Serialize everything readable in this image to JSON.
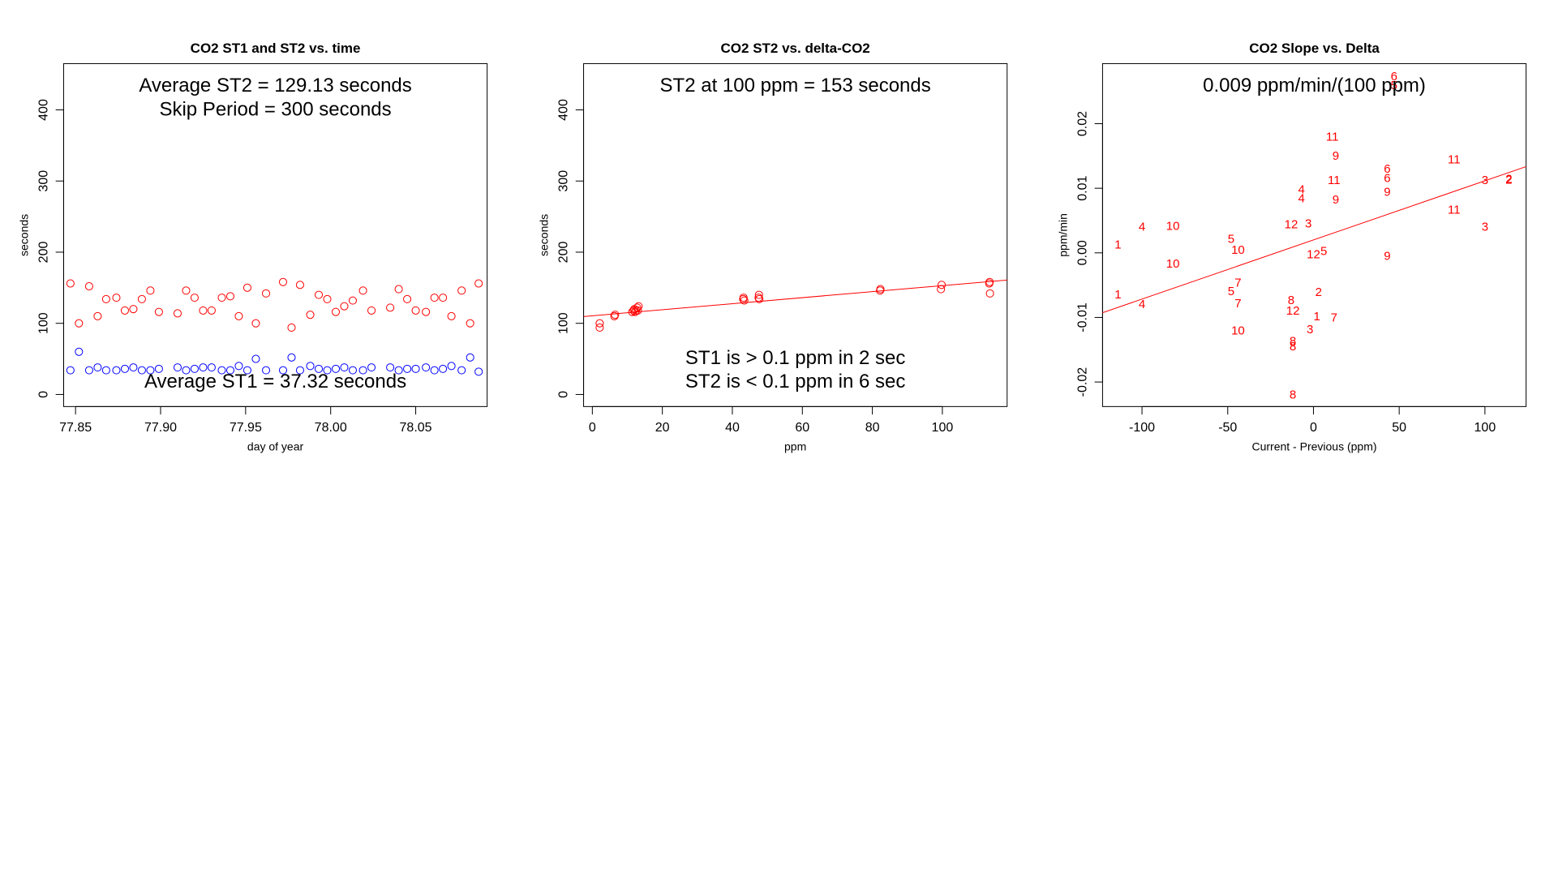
{
  "colors": {
    "st2": "#ff0000",
    "st1": "#0000ff",
    "axis": "#000000",
    "fit": "#ff0000"
  },
  "chart_data": [
    {
      "type": "scatter",
      "title": "CO2 ST1 and ST2 vs. time",
      "xlabel": "day of year",
      "ylabel": "seconds",
      "xlim": [
        77.843,
        78.092
      ],
      "ylim": [
        -17,
        465
      ],
      "xticks": [
        77.85,
        77.9,
        77.95,
        78.0,
        78.05
      ],
      "xtick_labels": [
        "77.85",
        "77.90",
        "77.95",
        "78.00",
        "78.05"
      ],
      "yticks": [
        0,
        100,
        200,
        300,
        400
      ],
      "ytick_labels": [
        "0",
        "100",
        "200",
        "300",
        "400"
      ],
      "annotations": [
        "Average ST2 =  129.13  seconds",
        "Skip Period =  300  seconds",
        "Average ST1 =  37.32  seconds"
      ],
      "series": [
        {
          "name": "ST2",
          "marker": "circle",
          "color": "#ff0000",
          "x": [
            77.847,
            77.852,
            77.858,
            77.863,
            77.868,
            77.874,
            77.879,
            77.884,
            77.889,
            77.894,
            77.899,
            77.91,
            77.915,
            77.92,
            77.925,
            77.93,
            77.936,
            77.941,
            77.946,
            77.951,
            77.956,
            77.962,
            77.972,
            77.977,
            77.982,
            77.988,
            77.993,
            77.998,
            78.003,
            78.008,
            78.013,
            78.019,
            78.024,
            78.035,
            78.04,
            78.045,
            78.05,
            78.056,
            78.061,
            78.066,
            78.071,
            78.077,
            78.082,
            78.087
          ],
          "y": [
            156,
            100,
            152,
            110,
            134,
            136,
            118,
            120,
            134,
            146,
            116,
            114,
            146,
            136,
            118,
            118,
            136,
            138,
            110,
            150,
            100,
            142,
            158,
            94,
            154,
            112,
            140,
            134,
            116,
            124,
            132,
            146,
            118,
            122,
            148,
            134,
            118,
            116,
            136,
            136,
            110,
            146,
            100,
            156
          ]
        },
        {
          "name": "ST1",
          "marker": "circle",
          "color": "#0000ff",
          "x": [
            77.847,
            77.852,
            77.858,
            77.863,
            77.868,
            77.874,
            77.879,
            77.884,
            77.889,
            77.894,
            77.899,
            77.91,
            77.915,
            77.92,
            77.925,
            77.93,
            77.936,
            77.941,
            77.946,
            77.951,
            77.956,
            77.962,
            77.972,
            77.977,
            77.982,
            77.988,
            77.993,
            77.998,
            78.003,
            78.008,
            78.013,
            78.019,
            78.024,
            78.035,
            78.04,
            78.045,
            78.05,
            78.056,
            78.061,
            78.066,
            78.071,
            78.077,
            78.082,
            78.087
          ],
          "y": [
            34,
            60,
            34,
            38,
            34,
            34,
            36,
            38,
            34,
            34,
            36,
            38,
            34,
            36,
            38,
            38,
            34,
            34,
            40,
            34,
            50,
            34,
            34,
            52,
            34,
            40,
            36,
            34,
            36,
            38,
            34,
            34,
            38,
            38,
            34,
            36,
            36,
            38,
            34,
            36,
            40,
            34,
            52,
            32
          ]
        }
      ]
    },
    {
      "type": "scatter",
      "title": "CO2 ST2 vs. delta-CO2",
      "xlabel": "ppm",
      "ylabel": "seconds",
      "xlim": [
        -2.5,
        118.5
      ],
      "ylim": [
        -17,
        465
      ],
      "xticks": [
        0,
        20,
        40,
        60,
        80,
        100
      ],
      "xtick_labels": [
        "0",
        "20",
        "40",
        "60",
        "80",
        "100"
      ],
      "yticks": [
        0,
        100,
        200,
        300,
        400
      ],
      "ytick_labels": [
        "0",
        "100",
        "200",
        "300",
        "400"
      ],
      "annotations": [
        "ST2 at 100 ppm =  153  seconds",
        "ST1 is > 0.1 ppm in 2 sec",
        "ST2 is < 0.1 ppm in 6 sec"
      ],
      "fit_line": {
        "intercept": 110.6,
        "slope": 0.424
      },
      "series": [
        {
          "name": "ST2",
          "marker": "circle",
          "color": "#ff0000",
          "x": [
            2.1,
            2.1,
            6.3,
            6.5,
            11.4,
            11.8,
            12.0,
            12.2,
            12.5,
            12.8,
            13.0,
            13.2,
            43.1,
            43.2,
            43.4,
            47.5,
            47.6,
            47.7,
            82.2,
            82.3,
            99.6,
            99.8,
            113.4,
            113.5,
            113.6
          ],
          "y": [
            100,
            94,
            110,
            112,
            116,
            118,
            120,
            116,
            118,
            122,
            118,
            124,
            134,
            136,
            132,
            136,
            140,
            134,
            146,
            148,
            148,
            154,
            156,
            158,
            142
          ]
        }
      ]
    },
    {
      "type": "scatter",
      "title": "CO2 Slope vs. Delta",
      "xlabel": "Current - Previous (ppm)",
      "ylabel": "ppm/min",
      "xlim": [
        -123,
        124
      ],
      "ylim": [
        -0.0238,
        0.0293
      ],
      "xticks": [
        -100,
        -50,
        0,
        50,
        100
      ],
      "xtick_labels": [
        "-100",
        "-50",
        "0",
        "50",
        "100"
      ],
      "yticks": [
        -0.02,
        -0.01,
        0.0,
        0.01,
        0.02
      ],
      "ytick_labels": [
        "-0.02",
        "-0.01",
        "0.00",
        "0.01",
        "0.02"
      ],
      "annotations": [
        "0.009  ppm/min/(100 ppm)"
      ],
      "fit_line": {
        "intercept": 0.002,
        "slope": 9.16e-05
      },
      "series": [
        {
          "name": "points",
          "marker": "label",
          "color": "#ff0000",
          "x": [
            -114,
            -114,
            -100,
            -100,
            -82,
            -82,
            -48,
            -48,
            -44,
            -44,
            -44,
            -44,
            -13,
            -13,
            -12,
            -12,
            -12,
            -12,
            -7,
            -7,
            -3,
            -2,
            0,
            2,
            3,
            6,
            11,
            12,
            12,
            13,
            13,
            43,
            43,
            43,
            43,
            47,
            47,
            82,
            82,
            100,
            100,
            114,
            114
          ],
          "y": [
            0.0012,
            -0.0065,
            0.004,
            -0.008,
            0.0041,
            -0.0017,
            0.0021,
            -0.006,
            0.0004,
            -0.0079,
            -0.0047,
            -0.0121,
            -0.0074,
            0.0044,
            -0.009,
            -0.0137,
            -0.0145,
            -0.022,
            0.0098,
            0.0084,
            0.0045,
            -0.0119,
            -0.0003,
            -0.0099,
            -0.0061,
            0.0002,
            0.0179,
            0.0112,
            -0.0101,
            0.015,
            0.0082,
            0.013,
            0.0115,
            0.0094,
            -0.0005,
            0.0273,
            0.0259,
            0.0144,
            0.0066,
            0.0112,
            0.004,
            0.0113,
            0.0114
          ],
          "labels": [
            "1",
            "1",
            "4",
            "4",
            "10",
            "10",
            "5",
            "5",
            "10",
            "7",
            "7",
            "10",
            "8",
            "12",
            "12",
            "8",
            "8",
            "8",
            "4",
            "4",
            "3",
            "3",
            "12",
            "1",
            "2",
            "5",
            "11",
            "11",
            "7",
            "9",
            "9",
            "6",
            "6",
            "9",
            "9",
            "6",
            "5",
            "11",
            "11",
            "3",
            "3",
            "2",
            "2"
          ]
        }
      ]
    }
  ]
}
